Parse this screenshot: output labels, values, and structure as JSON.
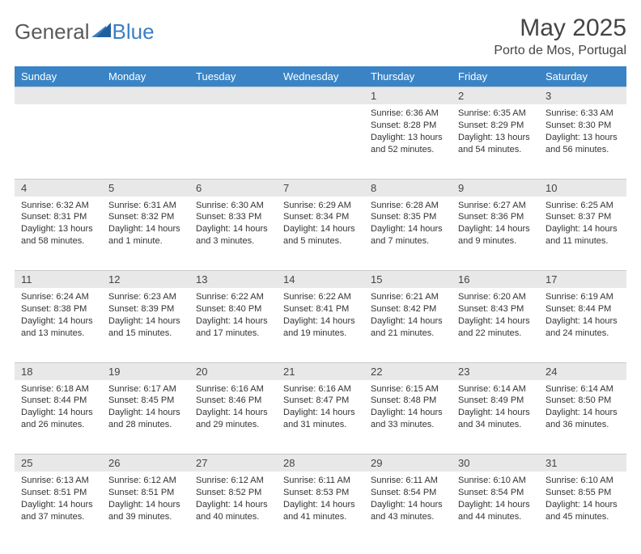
{
  "logo": {
    "part1": "General",
    "part2": "Blue"
  },
  "title": "May 2025",
  "location": "Porto de Mos, Portugal",
  "header_bg": "#3a84c6",
  "header_fg": "#ffffff",
  "daynum_bg": "#e8e8e8",
  "text_color": "#333333",
  "title_color": "#444444",
  "logo_blue": "#3a7fc4",
  "font_family": "Arial, Helvetica, sans-serif",
  "daynum_fontsize": 13,
  "content_fontsize": 11,
  "header_fontsize": 13,
  "title_fontsize": 30,
  "location_fontsize": 16,
  "day_headers": [
    "Sunday",
    "Monday",
    "Tuesday",
    "Wednesday",
    "Thursday",
    "Friday",
    "Saturday"
  ],
  "weeks": [
    [
      null,
      null,
      null,
      null,
      {
        "n": "1",
        "sunrise": "6:36 AM",
        "sunset": "8:28 PM",
        "daylight": "13 hours and 52 minutes."
      },
      {
        "n": "2",
        "sunrise": "6:35 AM",
        "sunset": "8:29 PM",
        "daylight": "13 hours and 54 minutes."
      },
      {
        "n": "3",
        "sunrise": "6:33 AM",
        "sunset": "8:30 PM",
        "daylight": "13 hours and 56 minutes."
      }
    ],
    [
      {
        "n": "4",
        "sunrise": "6:32 AM",
        "sunset": "8:31 PM",
        "daylight": "13 hours and 58 minutes."
      },
      {
        "n": "5",
        "sunrise": "6:31 AM",
        "sunset": "8:32 PM",
        "daylight": "14 hours and 1 minute."
      },
      {
        "n": "6",
        "sunrise": "6:30 AM",
        "sunset": "8:33 PM",
        "daylight": "14 hours and 3 minutes."
      },
      {
        "n": "7",
        "sunrise": "6:29 AM",
        "sunset": "8:34 PM",
        "daylight": "14 hours and 5 minutes."
      },
      {
        "n": "8",
        "sunrise": "6:28 AM",
        "sunset": "8:35 PM",
        "daylight": "14 hours and 7 minutes."
      },
      {
        "n": "9",
        "sunrise": "6:27 AM",
        "sunset": "8:36 PM",
        "daylight": "14 hours and 9 minutes."
      },
      {
        "n": "10",
        "sunrise": "6:25 AM",
        "sunset": "8:37 PM",
        "daylight": "14 hours and 11 minutes."
      }
    ],
    [
      {
        "n": "11",
        "sunrise": "6:24 AM",
        "sunset": "8:38 PM",
        "daylight": "14 hours and 13 minutes."
      },
      {
        "n": "12",
        "sunrise": "6:23 AM",
        "sunset": "8:39 PM",
        "daylight": "14 hours and 15 minutes."
      },
      {
        "n": "13",
        "sunrise": "6:22 AM",
        "sunset": "8:40 PM",
        "daylight": "14 hours and 17 minutes."
      },
      {
        "n": "14",
        "sunrise": "6:22 AM",
        "sunset": "8:41 PM",
        "daylight": "14 hours and 19 minutes."
      },
      {
        "n": "15",
        "sunrise": "6:21 AM",
        "sunset": "8:42 PM",
        "daylight": "14 hours and 21 minutes."
      },
      {
        "n": "16",
        "sunrise": "6:20 AM",
        "sunset": "8:43 PM",
        "daylight": "14 hours and 22 minutes."
      },
      {
        "n": "17",
        "sunrise": "6:19 AM",
        "sunset": "8:44 PM",
        "daylight": "14 hours and 24 minutes."
      }
    ],
    [
      {
        "n": "18",
        "sunrise": "6:18 AM",
        "sunset": "8:44 PM",
        "daylight": "14 hours and 26 minutes."
      },
      {
        "n": "19",
        "sunrise": "6:17 AM",
        "sunset": "8:45 PM",
        "daylight": "14 hours and 28 minutes."
      },
      {
        "n": "20",
        "sunrise": "6:16 AM",
        "sunset": "8:46 PM",
        "daylight": "14 hours and 29 minutes."
      },
      {
        "n": "21",
        "sunrise": "6:16 AM",
        "sunset": "8:47 PM",
        "daylight": "14 hours and 31 minutes."
      },
      {
        "n": "22",
        "sunrise": "6:15 AM",
        "sunset": "8:48 PM",
        "daylight": "14 hours and 33 minutes."
      },
      {
        "n": "23",
        "sunrise": "6:14 AM",
        "sunset": "8:49 PM",
        "daylight": "14 hours and 34 minutes."
      },
      {
        "n": "24",
        "sunrise": "6:14 AM",
        "sunset": "8:50 PM",
        "daylight": "14 hours and 36 minutes."
      }
    ],
    [
      {
        "n": "25",
        "sunrise": "6:13 AM",
        "sunset": "8:51 PM",
        "daylight": "14 hours and 37 minutes."
      },
      {
        "n": "26",
        "sunrise": "6:12 AM",
        "sunset": "8:51 PM",
        "daylight": "14 hours and 39 minutes."
      },
      {
        "n": "27",
        "sunrise": "6:12 AM",
        "sunset": "8:52 PM",
        "daylight": "14 hours and 40 minutes."
      },
      {
        "n": "28",
        "sunrise": "6:11 AM",
        "sunset": "8:53 PM",
        "daylight": "14 hours and 41 minutes."
      },
      {
        "n": "29",
        "sunrise": "6:11 AM",
        "sunset": "8:54 PM",
        "daylight": "14 hours and 43 minutes."
      },
      {
        "n": "30",
        "sunrise": "6:10 AM",
        "sunset": "8:54 PM",
        "daylight": "14 hours and 44 minutes."
      },
      {
        "n": "31",
        "sunrise": "6:10 AM",
        "sunset": "8:55 PM",
        "daylight": "14 hours and 45 minutes."
      }
    ]
  ],
  "labels": {
    "sunrise": "Sunrise:",
    "sunset": "Sunset:",
    "daylight": "Daylight:"
  }
}
